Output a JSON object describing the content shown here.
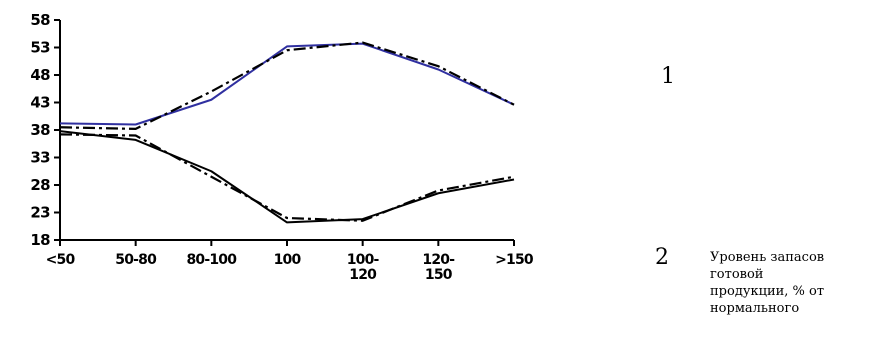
{
  "chart_data": {
    "type": "line",
    "categories": [
      "<50",
      "50-80",
      "80-100",
      "100",
      "100-\n120",
      "120-\n150",
      ">150"
    ],
    "ylim": [
      18,
      58
    ],
    "yticks": [
      18,
      23,
      28,
      33,
      38,
      43,
      48,
      53,
      58
    ],
    "grid": false,
    "series": [
      {
        "name": "1",
        "style": "solid",
        "color": "#3030a0",
        "values": [
          39.2,
          39.0,
          43.5,
          53.2,
          53.7,
          49.0,
          42.6
        ]
      },
      {
        "style": "dash-dot",
        "color": "#000000",
        "values": [
          38.5,
          38.2,
          45.0,
          52.5,
          53.9,
          49.6,
          42.6
        ]
      },
      {
        "name": "2",
        "style": "solid",
        "color": "#000000",
        "values": [
          37.8,
          36.2,
          30.5,
          21.2,
          21.8,
          26.5,
          29.0
        ]
      },
      {
        "style": "dash-dot",
        "color": "#000000",
        "values": [
          37.2,
          37.0,
          29.5,
          22.0,
          21.5,
          27.0,
          29.5
        ]
      }
    ],
    "xlabel": "Уровень запасов готовой продукции, % от нормального",
    "xlabel_lines": [
      "Уровень запасов",
      "готовой",
      "продукции, % от",
      "нормального"
    ]
  },
  "side_labels": [
    "1",
    "2"
  ]
}
